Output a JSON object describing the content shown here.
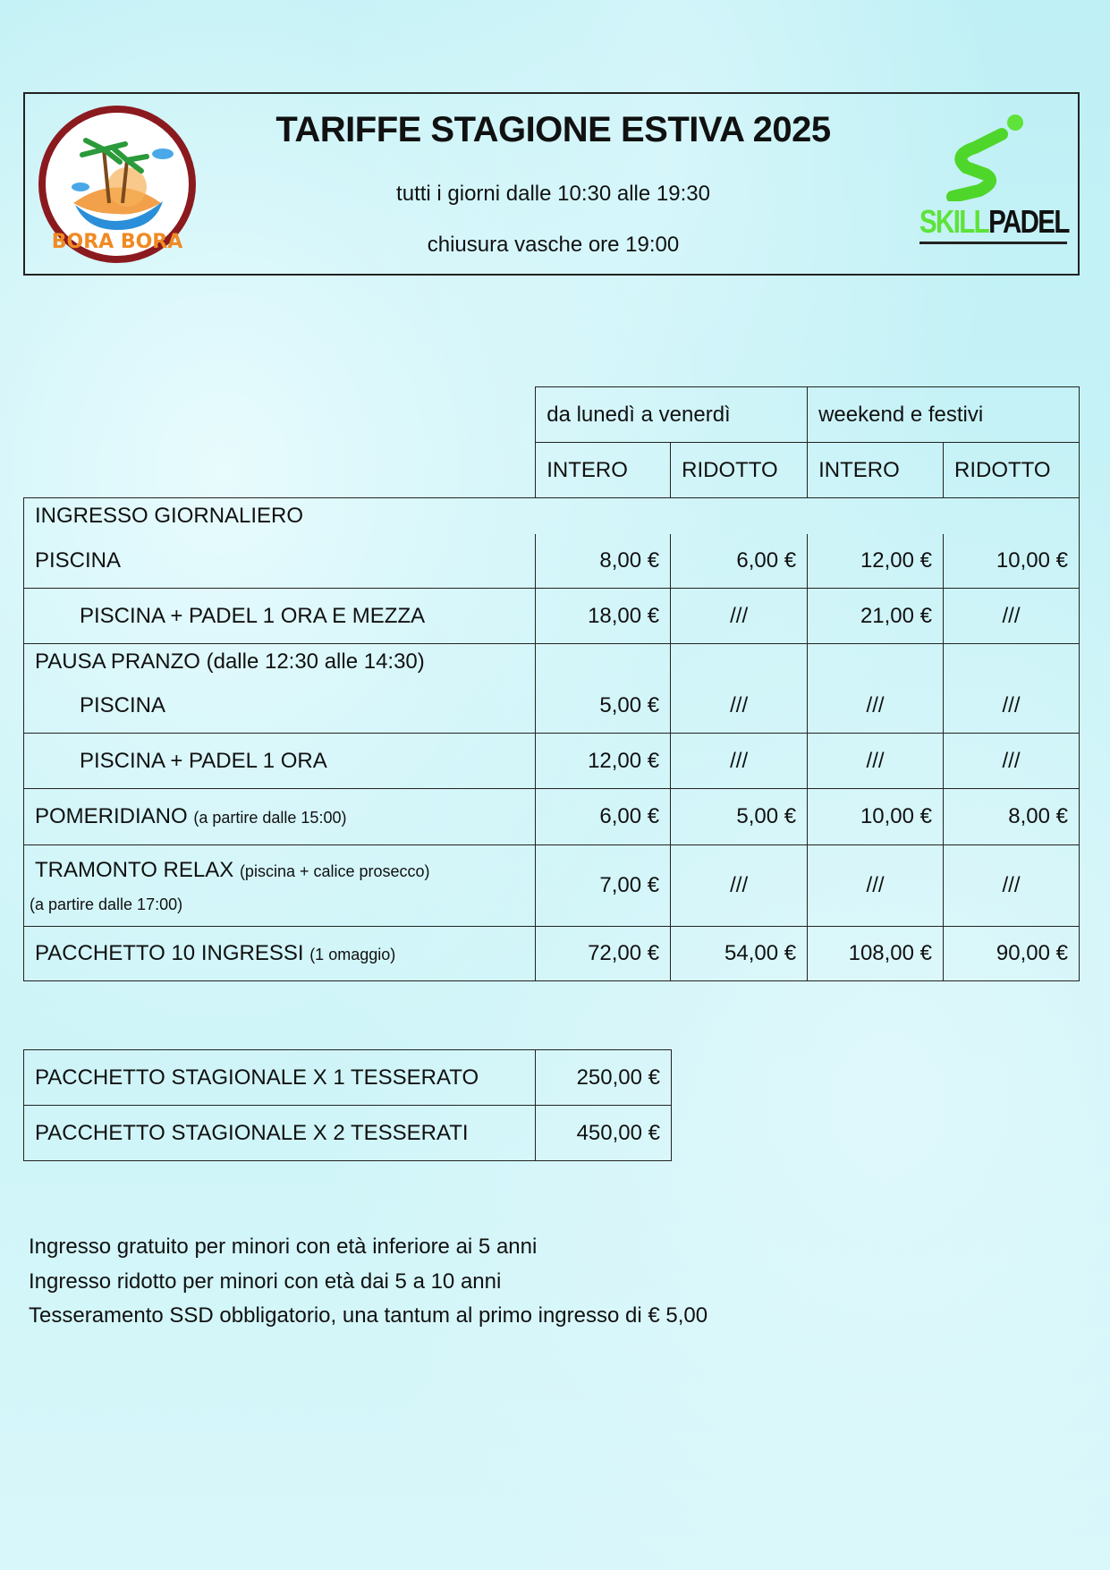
{
  "header": {
    "title": "TARIFFE STAGIONE ESTIVA 2025",
    "hours": "tutti i giorni dalle 10:30 alle 19:30",
    "closing": "chiusura vasche ore 19:00",
    "logo_left": "BORA BORA",
    "logo_right_a": "SKILL",
    "logo_right_b": "PADEL"
  },
  "table": {
    "group_weekday": "da lunedì a venerdì",
    "group_weekend": "weekend e festivi",
    "col_full": "INTERO",
    "col_reduced": "RIDOTTO",
    "section_daily": "INGRESSO GIORNALIERO",
    "rows": [
      {
        "label": "PISCINA",
        "note": "",
        "values": [
          "8,00 €",
          "6,00 €",
          "12,00 €",
          "10,00 €"
        ]
      },
      {
        "label": "PISCINA + PADEL 1 ORA E MEZZA",
        "note": "",
        "values": [
          "18,00 €",
          "///",
          "21,00 €",
          "///"
        ]
      },
      {
        "label": "PAUSA PRANZO (dalle 12:30 alle 14:30)"
      },
      {
        "label": "PISCINA",
        "note": "",
        "values": [
          "5,00 €",
          "///",
          "///",
          "///"
        ]
      },
      {
        "label": "PISCINA + PADEL 1 ORA",
        "note": "",
        "values": [
          "12,00 €",
          "///",
          "///",
          "///"
        ]
      },
      {
        "label": "POMERIDIANO",
        "note": "(a partire dalle 15:00)",
        "values": [
          "6,00 €",
          "5,00 €",
          "10,00 €",
          "8,00 €"
        ]
      },
      {
        "label": "TRAMONTO RELAX",
        "note": "(piscina + calice prosecco)",
        "note2": "(a partire dalle 17:00)",
        "values": [
          "7,00 €",
          "///",
          "///",
          "///"
        ]
      },
      {
        "label": "PACCHETTO 10 INGRESSI",
        "note": "(1 omaggio)",
        "values": [
          "72,00 €",
          "54,00 €",
          "108,00 €",
          "90,00 €"
        ]
      }
    ]
  },
  "season": [
    {
      "label": "PACCHETTO STAGIONALE X 1 TESSERATO",
      "price": "250,00 €"
    },
    {
      "label": "PACCHETTO STAGIONALE X 2 TESSERATI",
      "price": "450,00 €"
    }
  ],
  "notes": [
    "Ingresso gratuito per minori con età inferiore ai 5 anni",
    "Ingresso ridotto per minori con età dai 5 a 10 anni",
    "Tesseramento SSD obbligatorio, una tantum al primo ingresso di € 5,00"
  ]
}
